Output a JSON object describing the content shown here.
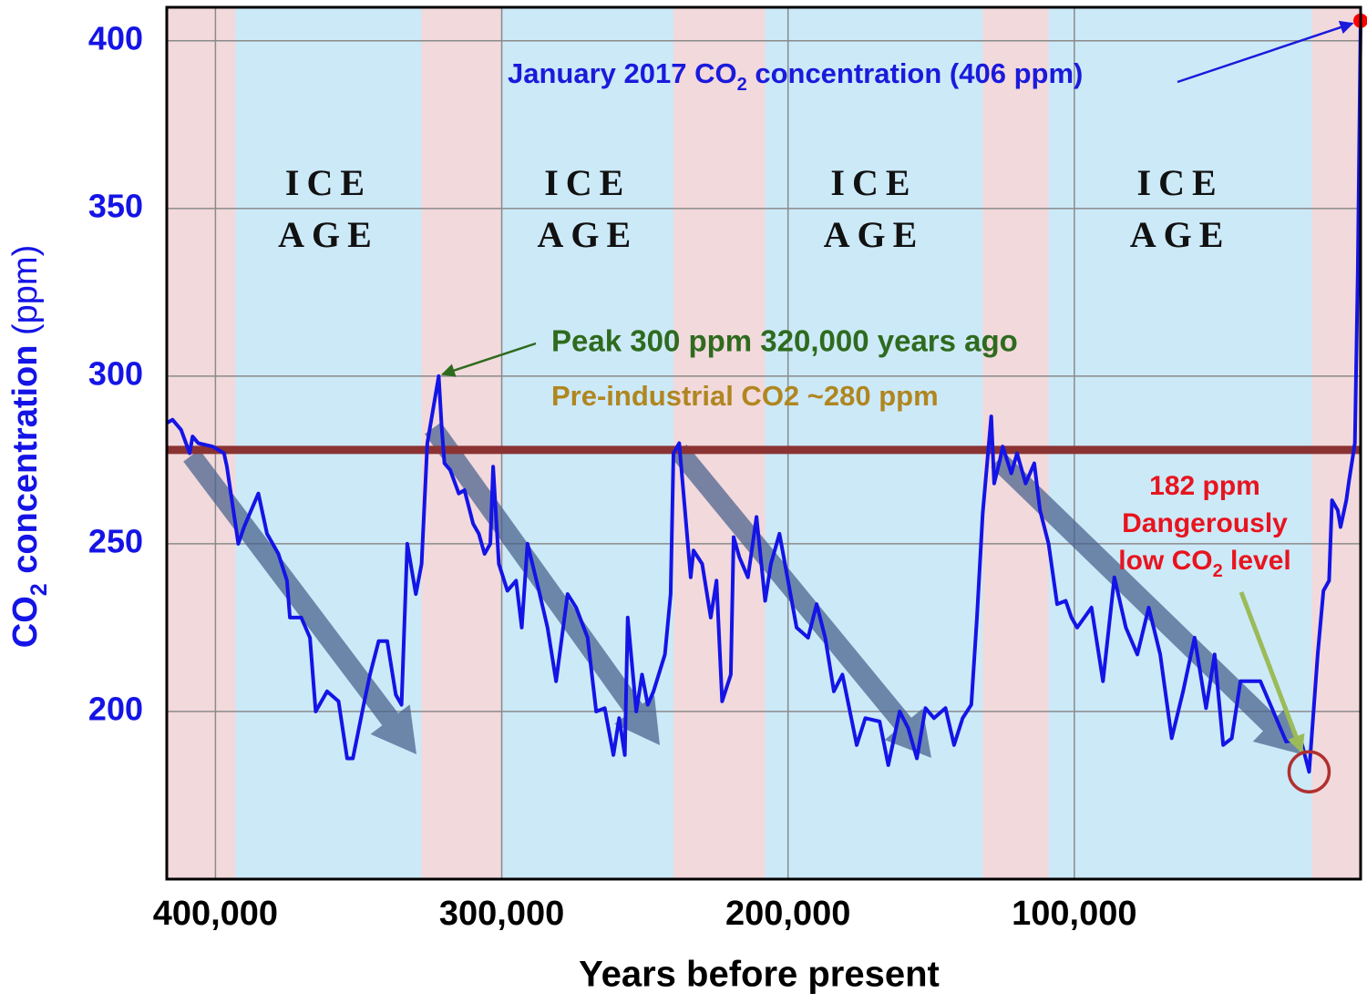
{
  "chart_data": {
    "type": "line",
    "x_label": "Years before present",
    "y_label": {
      "parts": [
        "CO",
        "2",
        " concentration",
        " (ppm)"
      ]
    },
    "xlim": [
      417000,
      0
    ],
    "ylim": [
      150,
      410
    ],
    "xticks": [
      {
        "value": 400000,
        "label": "400,000"
      },
      {
        "value": 300000,
        "label": "300,000"
      },
      {
        "value": 200000,
        "label": "200,000"
      },
      {
        "value": 100000,
        "label": "100,000"
      }
    ],
    "yticks": [
      200,
      250,
      300,
      350,
      400
    ],
    "grid": true,
    "glacial_color": "#cce9f8",
    "interglacial_color": "#f2d9dc",
    "shaded_periods": [
      {
        "start": 417000,
        "end": 393000
      },
      {
        "start": 328000,
        "end": 300000
      },
      {
        "start": 240000,
        "end": 208000
      },
      {
        "start": 132000,
        "end": 109000
      },
      {
        "start": 17000,
        "end": 0
      }
    ],
    "ice_age_labels": [
      {
        "line1": "ICE",
        "line2": "AGE"
      },
      {
        "line1": "ICE",
        "line2": "AGE"
      },
      {
        "line1": "ICE",
        "line2": "AGE"
      },
      {
        "line1": "ICE",
        "line2": "AGE"
      }
    ],
    "reference_line": {
      "value": 278,
      "label": "Pre-industrial CO2 ~280 ppm",
      "color": "#8b3333",
      "label_color": "#b08620"
    },
    "x": [
      417000,
      415000,
      412000,
      409000,
      408000,
      406000,
      401000,
      397000,
      396000,
      392000,
      390000,
      385000,
      382000,
      378000,
      375000,
      374000,
      370000,
      367000,
      365000,
      361000,
      357000,
      354000,
      352000,
      348000,
      346000,
      343000,
      340000,
      337000,
      335000,
      333000,
      330000,
      328000,
      326000,
      322000,
      321000,
      320000,
      318000,
      315000,
      313000,
      310000,
      308000,
      306000,
      304000,
      303000,
      301000,
      298000,
      295000,
      293000,
      291000,
      287000,
      284000,
      281000,
      277000,
      274000,
      270000,
      267000,
      264000,
      261000,
      259000,
      257000,
      256000,
      253000,
      251000,
      249000,
      247000,
      243000,
      241000,
      240000,
      238000,
      236000,
      234000,
      233000,
      230000,
      227000,
      225000,
      223000,
      220000,
      219000,
      217000,
      214000,
      211000,
      208000,
      206000,
      203000,
      200000,
      197000,
      193000,
      190000,
      187000,
      184000,
      181000,
      176000,
      173000,
      168000,
      165000,
      161000,
      158000,
      155000,
      152000,
      149000,
      145000,
      142000,
      139000,
      136000,
      134000,
      132000,
      129000,
      128000,
      126000,
      125000,
      122000,
      120000,
      117000,
      114000,
      112000,
      109000,
      106000,
      103000,
      101000,
      99000,
      94000,
      90000,
      86000,
      82000,
      78000,
      74000,
      70000,
      66000,
      62000,
      58000,
      54000,
      51000,
      48000,
      45000,
      42000,
      35000,
      31000,
      26000,
      21000,
      18000,
      15000,
      13000,
      11000,
      10000,
      8000,
      7000,
      5000,
      4000,
      2000,
      1000,
      0
    ],
    "series": [
      {
        "name": "CO2 concentration",
        "color": "#1414e6",
        "values": [
          286,
          287,
          284,
          277,
          282,
          280,
          279,
          277,
          273,
          250,
          255,
          265,
          253,
          247,
          239,
          228,
          228,
          222,
          200,
          206,
          203,
          186,
          186,
          203,
          211,
          221,
          221,
          205,
          202,
          250,
          235,
          244,
          280,
          300,
          285,
          274,
          272,
          265,
          266,
          256,
          253,
          247,
          250,
          273,
          244,
          236,
          239,
          225,
          250,
          236,
          225,
          209,
          235,
          231,
          222,
          200,
          201,
          187,
          198,
          187,
          228,
          200,
          211,
          202,
          206,
          217,
          235,
          277,
          280,
          260,
          240,
          248,
          244,
          228,
          239,
          203,
          211,
          252,
          246,
          240,
          258,
          233,
          244,
          253,
          239,
          225,
          222,
          232,
          222,
          206,
          211,
          190,
          198,
          197,
          184,
          200,
          195,
          186,
          201,
          198,
          201,
          190,
          198,
          202,
          228,
          259,
          288,
          268,
          275,
          279,
          271,
          277,
          268,
          274,
          260,
          250,
          232,
          233,
          228,
          225,
          231,
          209,
          240,
          225,
          217,
          231,
          217,
          192,
          206,
          222,
          201,
          217,
          190,
          192,
          209,
          209,
          201,
          191,
          192,
          182,
          217,
          236,
          239,
          263,
          260,
          255,
          263,
          269,
          280,
          331,
          406
        ]
      }
    ],
    "latest_marker_color": "#ff0000",
    "annotations": {
      "latest": {
        "parts": [
          "January 2017 CO",
          "2",
          " concentration (406 ppm)"
        ],
        "color": "#1a1adb"
      },
      "peak": {
        "text": "Peak 300 ppm 320,000 years ago",
        "color": "#2e6b1e"
      },
      "low": {
        "lines": [
          "182 ppm",
          "Dangerously"
        ],
        "last_line_parts": [
          "low CO",
          "2",
          " level"
        ],
        "color": "#e8141e",
        "circle_color": "#b03030",
        "arrow_color": "#9bbb59"
      }
    }
  }
}
